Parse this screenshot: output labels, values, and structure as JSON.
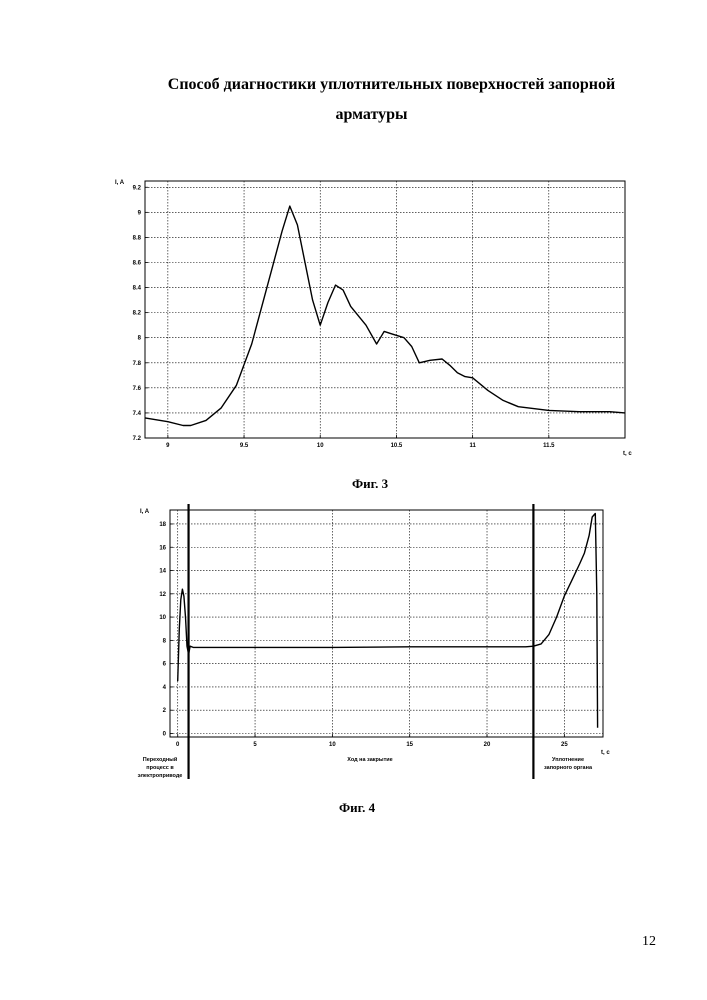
{
  "title_line1": "Способ диагностики уплотнительных поверхностей запорной",
  "title_line2": "арматуры",
  "fig3_caption": "Фиг. 3",
  "fig4_caption": "Фиг. 4",
  "page_number": "12",
  "chart_data": [
    {
      "type": "line",
      "xlabel": "t, c",
      "ylabel": "I, A",
      "xlim": [
        8.85,
        12.0
      ],
      "ylim": [
        7.2,
        9.25
      ],
      "x_ticks": [
        9,
        9.5,
        10,
        10.5,
        11,
        11.5
      ],
      "x_tick_labels": [
        "9",
        "9.5",
        "10",
        "10.5",
        "11",
        "11.5"
      ],
      "y_ticks": [
        7.2,
        7.4,
        7.6,
        7.8,
        8,
        8.2,
        8.4,
        8.6,
        8.8,
        9,
        9.2
      ],
      "y_tick_labels": [
        "7.2",
        "7.4",
        "7.6",
        "7.8",
        "8",
        "8.2",
        "8.4",
        "8.6",
        "8.8",
        "9",
        "9.2"
      ],
      "grid": true,
      "series": [
        {
          "x": [
            8.85,
            9.0,
            9.1,
            9.15,
            9.25,
            9.35,
            9.45,
            9.55,
            9.65,
            9.75,
            9.8,
            9.85,
            9.9,
            9.95,
            10.0,
            10.05,
            10.1,
            10.15,
            10.2,
            10.3,
            10.37,
            10.42,
            10.47,
            10.55,
            10.6,
            10.65,
            10.72,
            10.8,
            10.85,
            10.9,
            10.95,
            11.0,
            11.1,
            11.2,
            11.3,
            11.5,
            11.7,
            11.9,
            12.0
          ],
          "y": [
            7.36,
            7.33,
            7.3,
            7.3,
            7.34,
            7.44,
            7.62,
            7.95,
            8.4,
            8.85,
            9.05,
            8.9,
            8.6,
            8.3,
            8.1,
            8.28,
            8.42,
            8.38,
            8.25,
            8.1,
            7.95,
            8.05,
            8.03,
            8.0,
            7.93,
            7.8,
            7.82,
            7.83,
            7.78,
            7.72,
            7.69,
            7.68,
            7.58,
            7.5,
            7.45,
            7.42,
            7.41,
            7.41,
            7.4
          ]
        }
      ]
    },
    {
      "type": "line",
      "xlabel": "t, c",
      "ylabel": "I, A",
      "xlim": [
        -0.5,
        27.5
      ],
      "ylim": [
        -0.3,
        19.2
      ],
      "x_ticks": [
        0,
        5,
        10,
        15,
        20,
        25
      ],
      "x_tick_labels": [
        "0",
        "5",
        "10",
        "15",
        "20",
        "25"
      ],
      "y_ticks": [
        0,
        2,
        4,
        6,
        8,
        10,
        12,
        14,
        16,
        18
      ],
      "y_tick_labels": [
        "0",
        "2",
        "4",
        "6",
        "8",
        "10",
        "12",
        "14",
        "16",
        "18"
      ],
      "grid": true,
      "markers_x": [
        0.7,
        23.0
      ],
      "annotations": [
        {
          "lines": [
            "Переходный",
            "процесс в",
            "электроприводе"
          ]
        },
        {
          "lines": [
            "Ход на закрытие"
          ]
        },
        {
          "lines": [
            "Уплотнение",
            "запорного органа"
          ]
        }
      ],
      "series": [
        {
          "x": [
            0.0,
            0.1,
            0.2,
            0.3,
            0.4,
            0.5,
            0.6,
            0.7,
            0.8,
            1.0,
            5.0,
            10.0,
            15.0,
            20.0,
            22.5,
            23.0,
            23.5,
            24.0,
            24.5,
            25.0,
            25.5,
            26.0,
            26.3,
            26.6,
            26.8,
            27.0,
            27.1,
            27.15
          ],
          "y": [
            4.5,
            9.0,
            11.5,
            12.4,
            11.8,
            10.0,
            7.5,
            6.8,
            7.5,
            7.4,
            7.4,
            7.4,
            7.45,
            7.45,
            7.45,
            7.5,
            7.7,
            8.5,
            10.0,
            11.8,
            13.2,
            14.6,
            15.5,
            17.0,
            18.6,
            18.9,
            12.0,
            0.5
          ]
        }
      ]
    }
  ]
}
